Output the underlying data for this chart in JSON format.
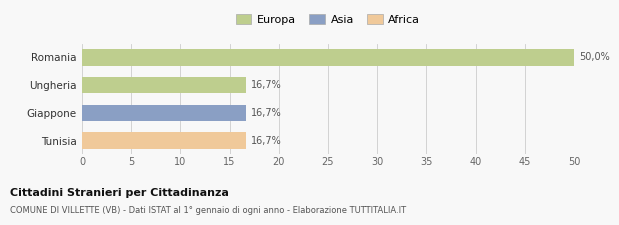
{
  "categories": [
    "Tunisia",
    "Giappone",
    "Ungheria",
    "Romania"
  ],
  "values": [
    16.7,
    16.7,
    16.7,
    50.0
  ],
  "colors": [
    "#f0c99a",
    "#8a9fc4",
    "#bece8e",
    "#bece8e"
  ],
  "legend": [
    {
      "label": "Europa",
      "color": "#bece8e"
    },
    {
      "label": "Asia",
      "color": "#8a9fc4"
    },
    {
      "label": "Africa",
      "color": "#f0c99a"
    }
  ],
  "xlim": [
    0,
    50
  ],
  "xticks": [
    0,
    5,
    10,
    15,
    20,
    25,
    30,
    35,
    40,
    45,
    50
  ],
  "bar_labels": [
    "16,7%",
    "16,7%",
    "16,7%",
    "50,0%"
  ],
  "title_bold": "Cittadini Stranieri per Cittadinanza",
  "subtitle": "COMUNE DI VILLETTE (VB) - Dati ISTAT al 1° gennaio di ogni anno - Elaborazione TUTTITALIA.IT",
  "background_color": "#f8f8f8",
  "bar_height": 0.6
}
